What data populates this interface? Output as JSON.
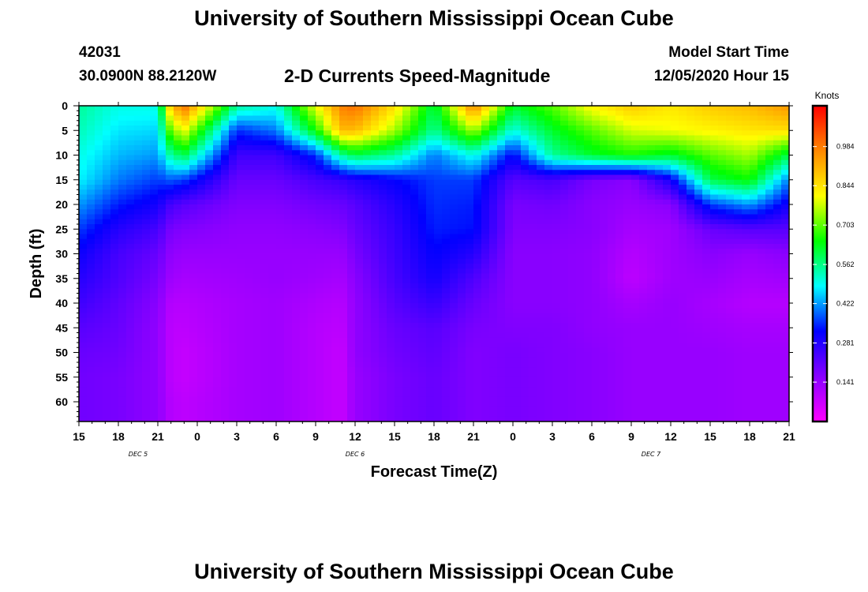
{
  "page": {
    "title_top": "University of Southern Mississippi Ocean Cube",
    "title_bottom": "University of Southern Mississippi Ocean Cube",
    "station_id": "42031",
    "location": "30.0900N 88.2120W",
    "subtitle": "2-D Currents Speed-Magnitude",
    "model_start_label": "Model Start Time",
    "model_start_value": "12/05/2020 Hour 15"
  },
  "colors": {
    "colormap": [
      "#ff00ff",
      "#8800ff",
      "#0000ff",
      "#00ffff",
      "#00ff00",
      "#ffff00",
      "#ff8800",
      "#ff0000"
    ],
    "frame": "#000000"
  },
  "chart_data": {
    "type": "heatmap",
    "xlabel": "Forecast Time(Z)",
    "ylabel": "Depth (ft)",
    "x_tick_labels": [
      "15",
      "18",
      "21",
      "0",
      "3",
      "6",
      "9",
      "12",
      "15",
      "18",
      "21",
      "0",
      "3",
      "6",
      "9",
      "12",
      "15",
      "18",
      "21"
    ],
    "x_range_hours": [
      0,
      54
    ],
    "day_labels": [
      {
        "label": "DEC 5",
        "hour": 4.5
      },
      {
        "label": "DEC 6",
        "hour": 21
      },
      {
        "label": "DEC 7",
        "hour": 43.5
      }
    ],
    "y_ticks": [
      0,
      5,
      10,
      15,
      20,
      25,
      30,
      35,
      40,
      45,
      50,
      55,
      60
    ],
    "ylim": [
      0,
      64
    ],
    "colorbar": {
      "unit": "Knots",
      "range": [
        0.0,
        1.13
      ],
      "tick_labels": [
        "0.141",
        "0.281",
        "0.422",
        "0.562",
        "0.703",
        "0.844",
        "0.984"
      ]
    },
    "time_hours": [
      0,
      3,
      6,
      7,
      8,
      12,
      15,
      18,
      20,
      21,
      24,
      27,
      30,
      33,
      36,
      39,
      42,
      45,
      48,
      51,
      54
    ],
    "depths_ft": [
      0,
      5,
      10,
      15,
      20,
      25,
      30,
      35,
      40,
      45,
      50,
      55,
      60,
      64
    ],
    "speed_knots": [
      [
        0.55,
        0.53,
        0.5,
        0.48,
        0.42,
        0.36,
        0.31,
        0.28,
        0.25,
        0.22,
        0.2,
        0.19,
        0.19,
        0.19
      ],
      [
        0.5,
        0.47,
        0.44,
        0.4,
        0.34,
        0.28,
        0.24,
        0.23,
        0.21,
        0.2,
        0.19,
        0.18,
        0.18,
        0.18
      ],
      [
        0.5,
        0.46,
        0.42,
        0.36,
        0.3,
        0.24,
        0.2,
        0.18,
        0.16,
        0.15,
        0.15,
        0.15,
        0.15,
        0.15
      ],
      [
        0.9,
        0.72,
        0.55,
        0.38,
        0.24,
        0.18,
        0.15,
        0.13,
        0.1,
        0.09,
        0.09,
        0.09,
        0.1,
        0.1
      ],
      [
        1.0,
        0.8,
        0.6,
        0.36,
        0.22,
        0.17,
        0.14,
        0.12,
        0.1,
        0.09,
        0.08,
        0.08,
        0.09,
        0.09
      ],
      [
        0.55,
        0.35,
        0.25,
        0.2,
        0.17,
        0.15,
        0.14,
        0.13,
        0.12,
        0.12,
        0.12,
        0.12,
        0.12,
        0.12
      ],
      [
        0.5,
        0.4,
        0.25,
        0.2,
        0.17,
        0.15,
        0.14,
        0.14,
        0.13,
        0.13,
        0.13,
        0.13,
        0.13,
        0.13
      ],
      [
        0.8,
        0.65,
        0.35,
        0.24,
        0.19,
        0.16,
        0.14,
        0.13,
        0.11,
        0.1,
        0.1,
        0.1,
        0.1,
        0.1
      ],
      [
        0.98,
        0.9,
        0.55,
        0.26,
        0.2,
        0.17,
        0.14,
        0.12,
        0.1,
        0.09,
        0.08,
        0.08,
        0.08,
        0.08
      ],
      [
        1.0,
        0.9,
        0.6,
        0.28,
        0.22,
        0.2,
        0.18,
        0.16,
        0.15,
        0.15,
        0.15,
        0.14,
        0.14,
        0.14
      ],
      [
        0.85,
        0.75,
        0.55,
        0.32,
        0.28,
        0.26,
        0.25,
        0.24,
        0.22,
        0.2,
        0.19,
        0.18,
        0.18,
        0.18
      ],
      [
        0.6,
        0.55,
        0.4,
        0.36,
        0.35,
        0.34,
        0.32,
        0.3,
        0.26,
        0.22,
        0.21,
        0.2,
        0.2,
        0.2
      ],
      [
        0.98,
        0.75,
        0.5,
        0.36,
        0.34,
        0.33,
        0.28,
        0.23,
        0.2,
        0.18,
        0.17,
        0.17,
        0.17,
        0.17
      ],
      [
        0.62,
        0.5,
        0.32,
        0.22,
        0.18,
        0.17,
        0.16,
        0.16,
        0.16,
        0.17,
        0.18,
        0.18,
        0.18,
        0.18
      ],
      [
        0.7,
        0.62,
        0.55,
        0.24,
        0.19,
        0.17,
        0.16,
        0.16,
        0.16,
        0.17,
        0.17,
        0.17,
        0.17,
        0.17
      ],
      [
        0.82,
        0.7,
        0.62,
        0.18,
        0.16,
        0.16,
        0.15,
        0.15,
        0.15,
        0.15,
        0.16,
        0.16,
        0.16,
        0.16
      ],
      [
        0.88,
        0.78,
        0.66,
        0.16,
        0.14,
        0.12,
        0.1,
        0.09,
        0.12,
        0.14,
        0.14,
        0.14,
        0.14,
        0.14
      ],
      [
        0.84,
        0.8,
        0.62,
        0.3,
        0.16,
        0.13,
        0.13,
        0.13,
        0.14,
        0.14,
        0.14,
        0.14,
        0.14,
        0.14
      ],
      [
        0.88,
        0.82,
        0.7,
        0.6,
        0.36,
        0.2,
        0.16,
        0.14,
        0.12,
        0.13,
        0.14,
        0.14,
        0.14,
        0.14
      ],
      [
        0.9,
        0.84,
        0.75,
        0.65,
        0.42,
        0.22,
        0.14,
        0.12,
        0.1,
        0.12,
        0.13,
        0.13,
        0.13,
        0.13
      ],
      [
        0.95,
        0.85,
        0.6,
        0.4,
        0.3,
        0.22,
        0.16,
        0.13,
        0.1,
        0.12,
        0.13,
        0.13,
        0.13,
        0.13
      ]
    ]
  }
}
